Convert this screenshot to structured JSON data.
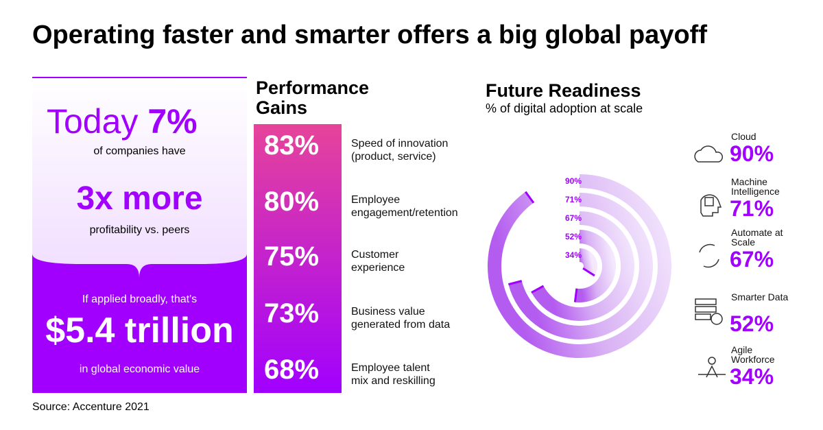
{
  "title": "Operating faster and smarter offers a big global payoff",
  "left_panel": {
    "headline_prefix": "Today",
    "headline_value": "7%",
    "line1": "of companies have",
    "highlight": "3x more",
    "line2": "profitability vs. peers",
    "line3": "If applied broadly, that's",
    "big_value": "$5.4 trillion",
    "line4": "in global economic value"
  },
  "performance": {
    "title": "Performance Gains",
    "items": [
      {
        "value": "83%",
        "label": [
          "Speed of innovation",
          "(product, service)"
        ]
      },
      {
        "value": "80%",
        "label": [
          "Employee",
          "engagement/retention"
        ]
      },
      {
        "value": "75%",
        "label": [
          "Customer",
          "experience"
        ]
      },
      {
        "value": "73%",
        "label": [
          "Business value",
          "generated from data"
        ]
      },
      {
        "value": "68%",
        "label": [
          "Employee talent",
          "mix and reskilling"
        ]
      }
    ]
  },
  "chart_data": {
    "type": "radial_bar",
    "title": "Future Readiness",
    "subtitle": "% of digital adoption at scale",
    "categories": [
      "Cloud",
      "Machine Intelligence",
      "Automate at Scale",
      "Smarter Data",
      "Agile Workforce"
    ],
    "values": [
      90,
      71,
      67,
      52,
      34
    ],
    "value_labels": [
      "90%",
      "71%",
      "67%",
      "52%",
      "34%"
    ],
    "color": "#a100ff",
    "ylim": [
      0,
      100
    ]
  },
  "source": "Source: Accenture 2021"
}
